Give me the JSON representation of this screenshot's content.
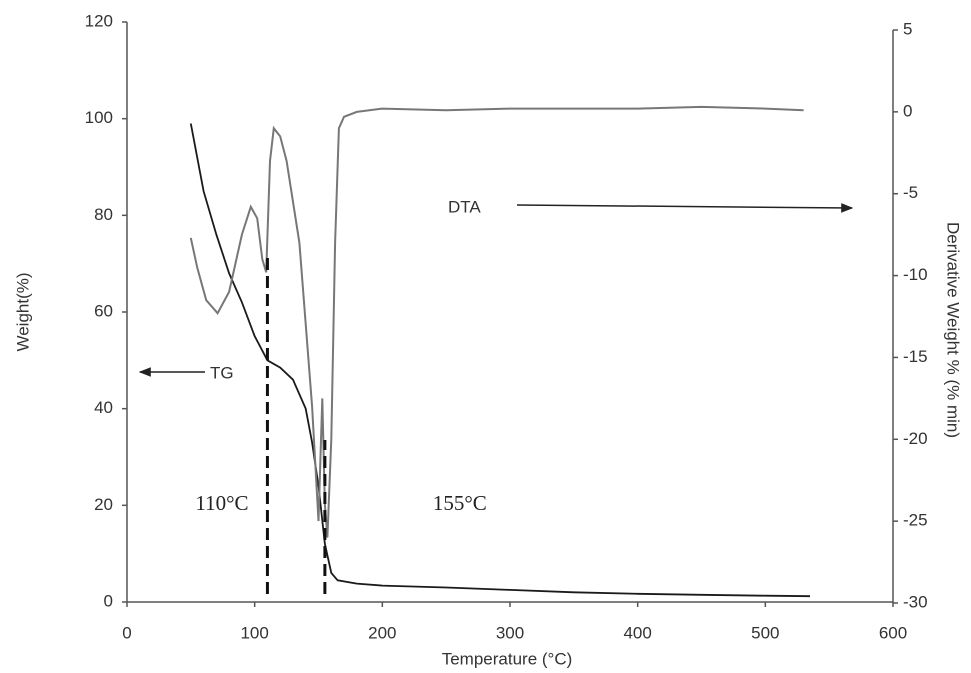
{
  "chart_data": {
    "type": "line",
    "xlabel": "Temperature (°C)",
    "ylabel": "Weight(%)",
    "y2label": "Derivative Weight % (% min)",
    "xlim": [
      0,
      600
    ],
    "xticks": [
      0,
      100,
      200,
      300,
      400,
      500,
      600
    ],
    "ylim": [
      0,
      120
    ],
    "yticks": [
      0,
      20,
      40,
      60,
      80,
      100,
      120
    ],
    "y2lim": [
      -30,
      5
    ],
    "y2ticks": [
      5,
      0,
      -5,
      -10,
      -15,
      -20,
      -25,
      -30
    ],
    "series": [
      {
        "name": "TG",
        "color": "#1a1a1a",
        "x": [
          50,
          60,
          70,
          80,
          90,
          100,
          110,
          120,
          130,
          140,
          145,
          150,
          155,
          160,
          165,
          180,
          200,
          250,
          300,
          350,
          400,
          450,
          500,
          535
        ],
        "values": [
          99,
          85,
          76,
          68,
          62,
          55,
          50,
          48.5,
          46,
          40,
          33,
          24,
          12,
          6,
          4.5,
          3.8,
          3.4,
          3,
          2.5,
          2,
          1.7,
          1.5,
          1.3,
          1.2
        ]
      },
      {
        "name": "DTA",
        "color": "#777777",
        "axis": "y2",
        "x": [
          50,
          55,
          62,
          71,
          80,
          90,
          97,
          102,
          106,
          109,
          112,
          115,
          120,
          125,
          135,
          145,
          150,
          153,
          155,
          157,
          160,
          163,
          166,
          170,
          180,
          200,
          250,
          300,
          350,
          400,
          450,
          500,
          530
        ],
        "values": [
          -7.7,
          -9.5,
          -11.5,
          -12.3,
          -11,
          -7.5,
          -5.8,
          -6.5,
          -9,
          -9.8,
          -3,
          -1,
          -1.5,
          -3,
          -8,
          -18,
          -25,
          -17.5,
          -24,
          -26,
          -20,
          -8,
          -1,
          -0.3,
          0,
          0.2,
          0.1,
          0.2,
          0.2,
          0.2,
          0.3,
          0.2,
          0.1
        ]
      }
    ],
    "annotations": [
      {
        "text": "TG"
      },
      {
        "text": "DTA"
      },
      {
        "text": "110°C",
        "x": 110
      },
      {
        "text": "155°C",
        "x": 155
      }
    ]
  }
}
